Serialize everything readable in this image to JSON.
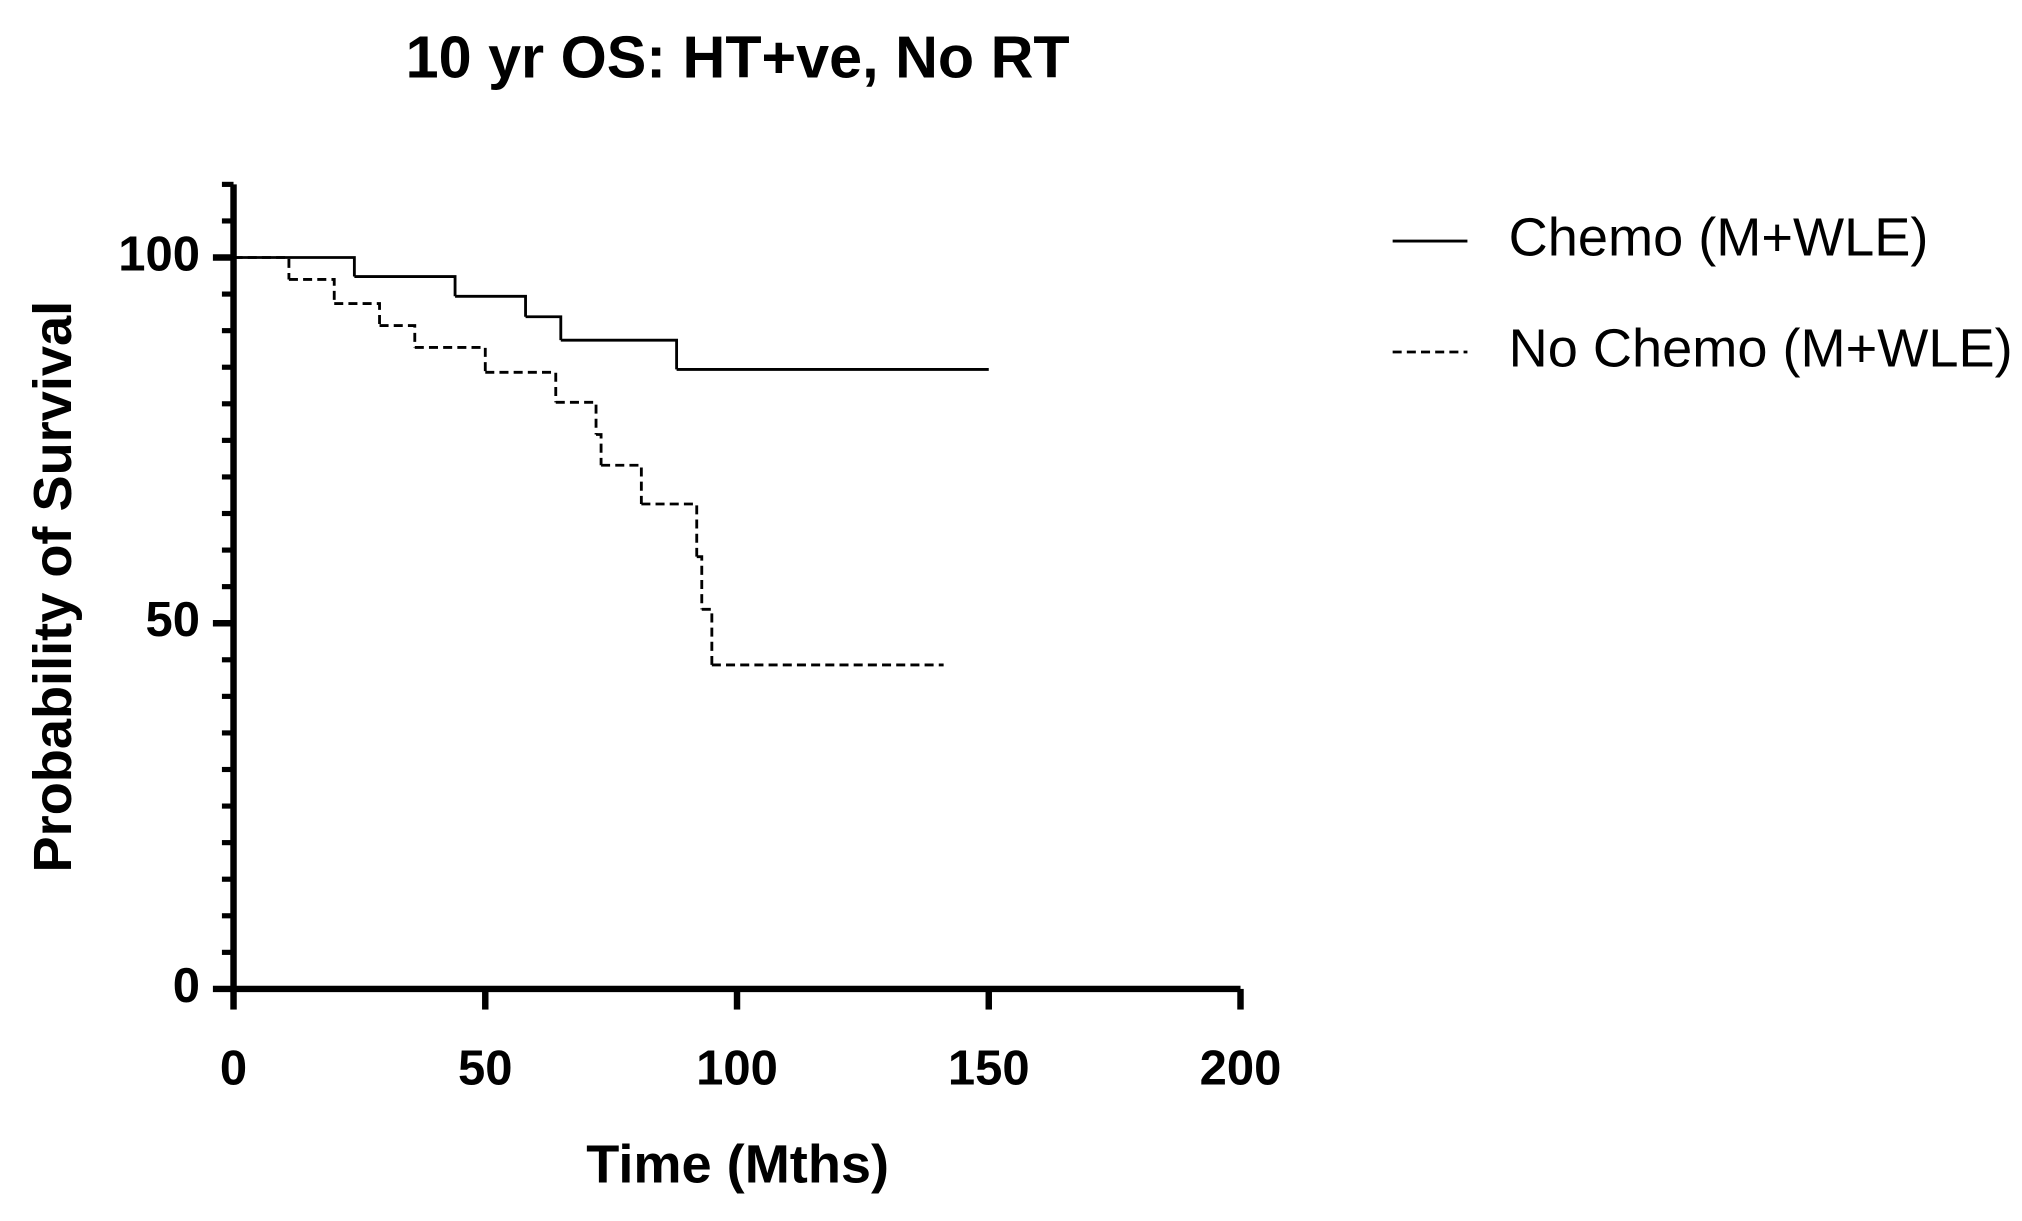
{
  "chart_data": {
    "type": "step",
    "title": "10 yr OS: HT+ve, No RT",
    "x_label": "Time (Mths)",
    "y_label": "Probability of Survival",
    "xlim": [
      0,
      200
    ],
    "xticks": [
      0,
      50,
      100,
      150,
      200
    ],
    "ylim": [
      0,
      110
    ],
    "yticks": [
      0,
      50,
      100
    ],
    "yminorticks": [
      5,
      10,
      15,
      20,
      25,
      30,
      35,
      40,
      45,
      55,
      60,
      65,
      70,
      75,
      80,
      85,
      90,
      95,
      105,
      110
    ],
    "series": [
      {
        "name": "Chemo (M+WLE)",
        "color": "#000000",
        "dashed": false,
        "x": [
          0,
          24,
          44,
          58,
          65,
          88,
          150
        ],
        "values": [
          100,
          97.4,
          94.7,
          91.9,
          88.7,
          84.7,
          84.7
        ]
      },
      {
        "name": "No Chemo (M+WLE)",
        "color": "#000000",
        "dashed": true,
        "x": [
          0,
          11,
          20,
          29,
          36,
          50,
          64,
          72,
          73,
          81,
          92,
          93,
          95,
          141
        ],
        "values": [
          100,
          97,
          93.7,
          90.7,
          87.7,
          84.3,
          80.2,
          75.8,
          71.6,
          66.3,
          59.1,
          51.9,
          44.3,
          44.3
        ]
      }
    ]
  }
}
